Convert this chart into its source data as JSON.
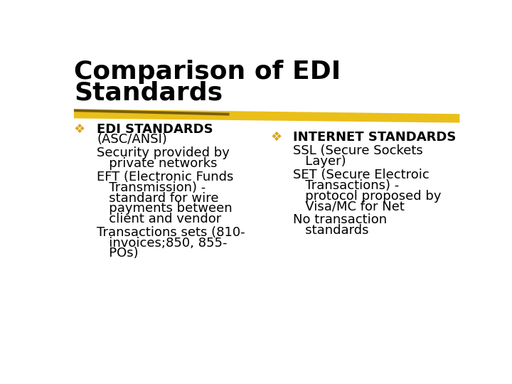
{
  "title_line1": "Comparison of EDI",
  "title_line2": "Standards",
  "title_fontsize": 26,
  "title_color": "#000000",
  "background_color": "#ffffff",
  "bullet_color": "#DAA520",
  "text_color": "#000000",
  "highlight_bar_color": "#DAA520",
  "bullet_char": "❖",
  "left_col_items": [
    {
      "type": "bullet",
      "lines": [
        "EDI STANDARDS",
        "(ASC/ANSI)"
      ]
    },
    {
      "type": "plain",
      "lines": [
        "Security provided by",
        "   private networks"
      ]
    },
    {
      "type": "plain",
      "lines": [
        "EFT (Electronic Funds",
        "   Transmission) -",
        "   standard for wire",
        "   payments between",
        "   client and vendor"
      ]
    },
    {
      "type": "plain",
      "lines": [
        "Transactions sets (810-",
        "   invoices;850, 855-",
        "   POs)"
      ]
    }
  ],
  "right_col_items": [
    {
      "type": "bullet",
      "lines": [
        "INTERNET STANDARDS"
      ]
    },
    {
      "type": "plain",
      "lines": [
        "SSL (Secure Sockets",
        "   Layer)"
      ]
    },
    {
      "type": "plain",
      "lines": [
        "SET (Secure Electroic",
        "   Transactions) -",
        "   protocol proposed by",
        "   Visa/MC for Net"
      ]
    },
    {
      "type": "plain",
      "lines": [
        "No transaction",
        "   standards"
      ]
    }
  ]
}
